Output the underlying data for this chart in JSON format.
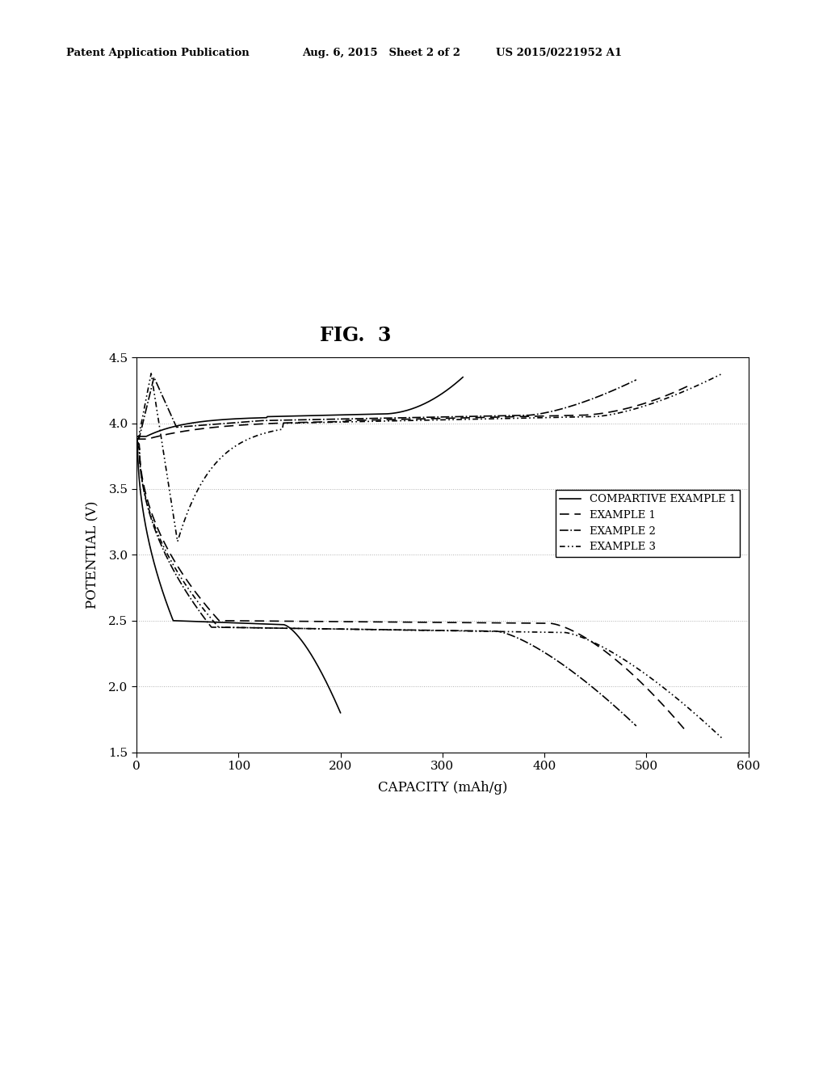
{
  "header_left": "Patent Application Publication",
  "header_middle": "Aug. 6, 2015   Sheet 2 of 2",
  "header_right": "US 2015/0221952 A1",
  "fig_title": "FIG.  3",
  "xlabel": "CAPACITY (mAh/g)",
  "ylabel": "POTENTIAL (V)",
  "xlim": [
    0,
    600
  ],
  "ylim": [
    1.5,
    4.5
  ],
  "xticks": [
    0,
    100,
    200,
    300,
    400,
    500,
    600
  ],
  "yticks": [
    1.5,
    2.0,
    2.5,
    3.0,
    3.5,
    4.0,
    4.5
  ],
  "background_color": "#ffffff",
  "legend_labels": [
    "COMPARTIVE EXAMPLE 1",
    "EXAMPLE 1",
    "EXAMPLE 2",
    "EXAMPLE 3"
  ],
  "line_color": "#000000",
  "grid_color": "#b0b0b0"
}
